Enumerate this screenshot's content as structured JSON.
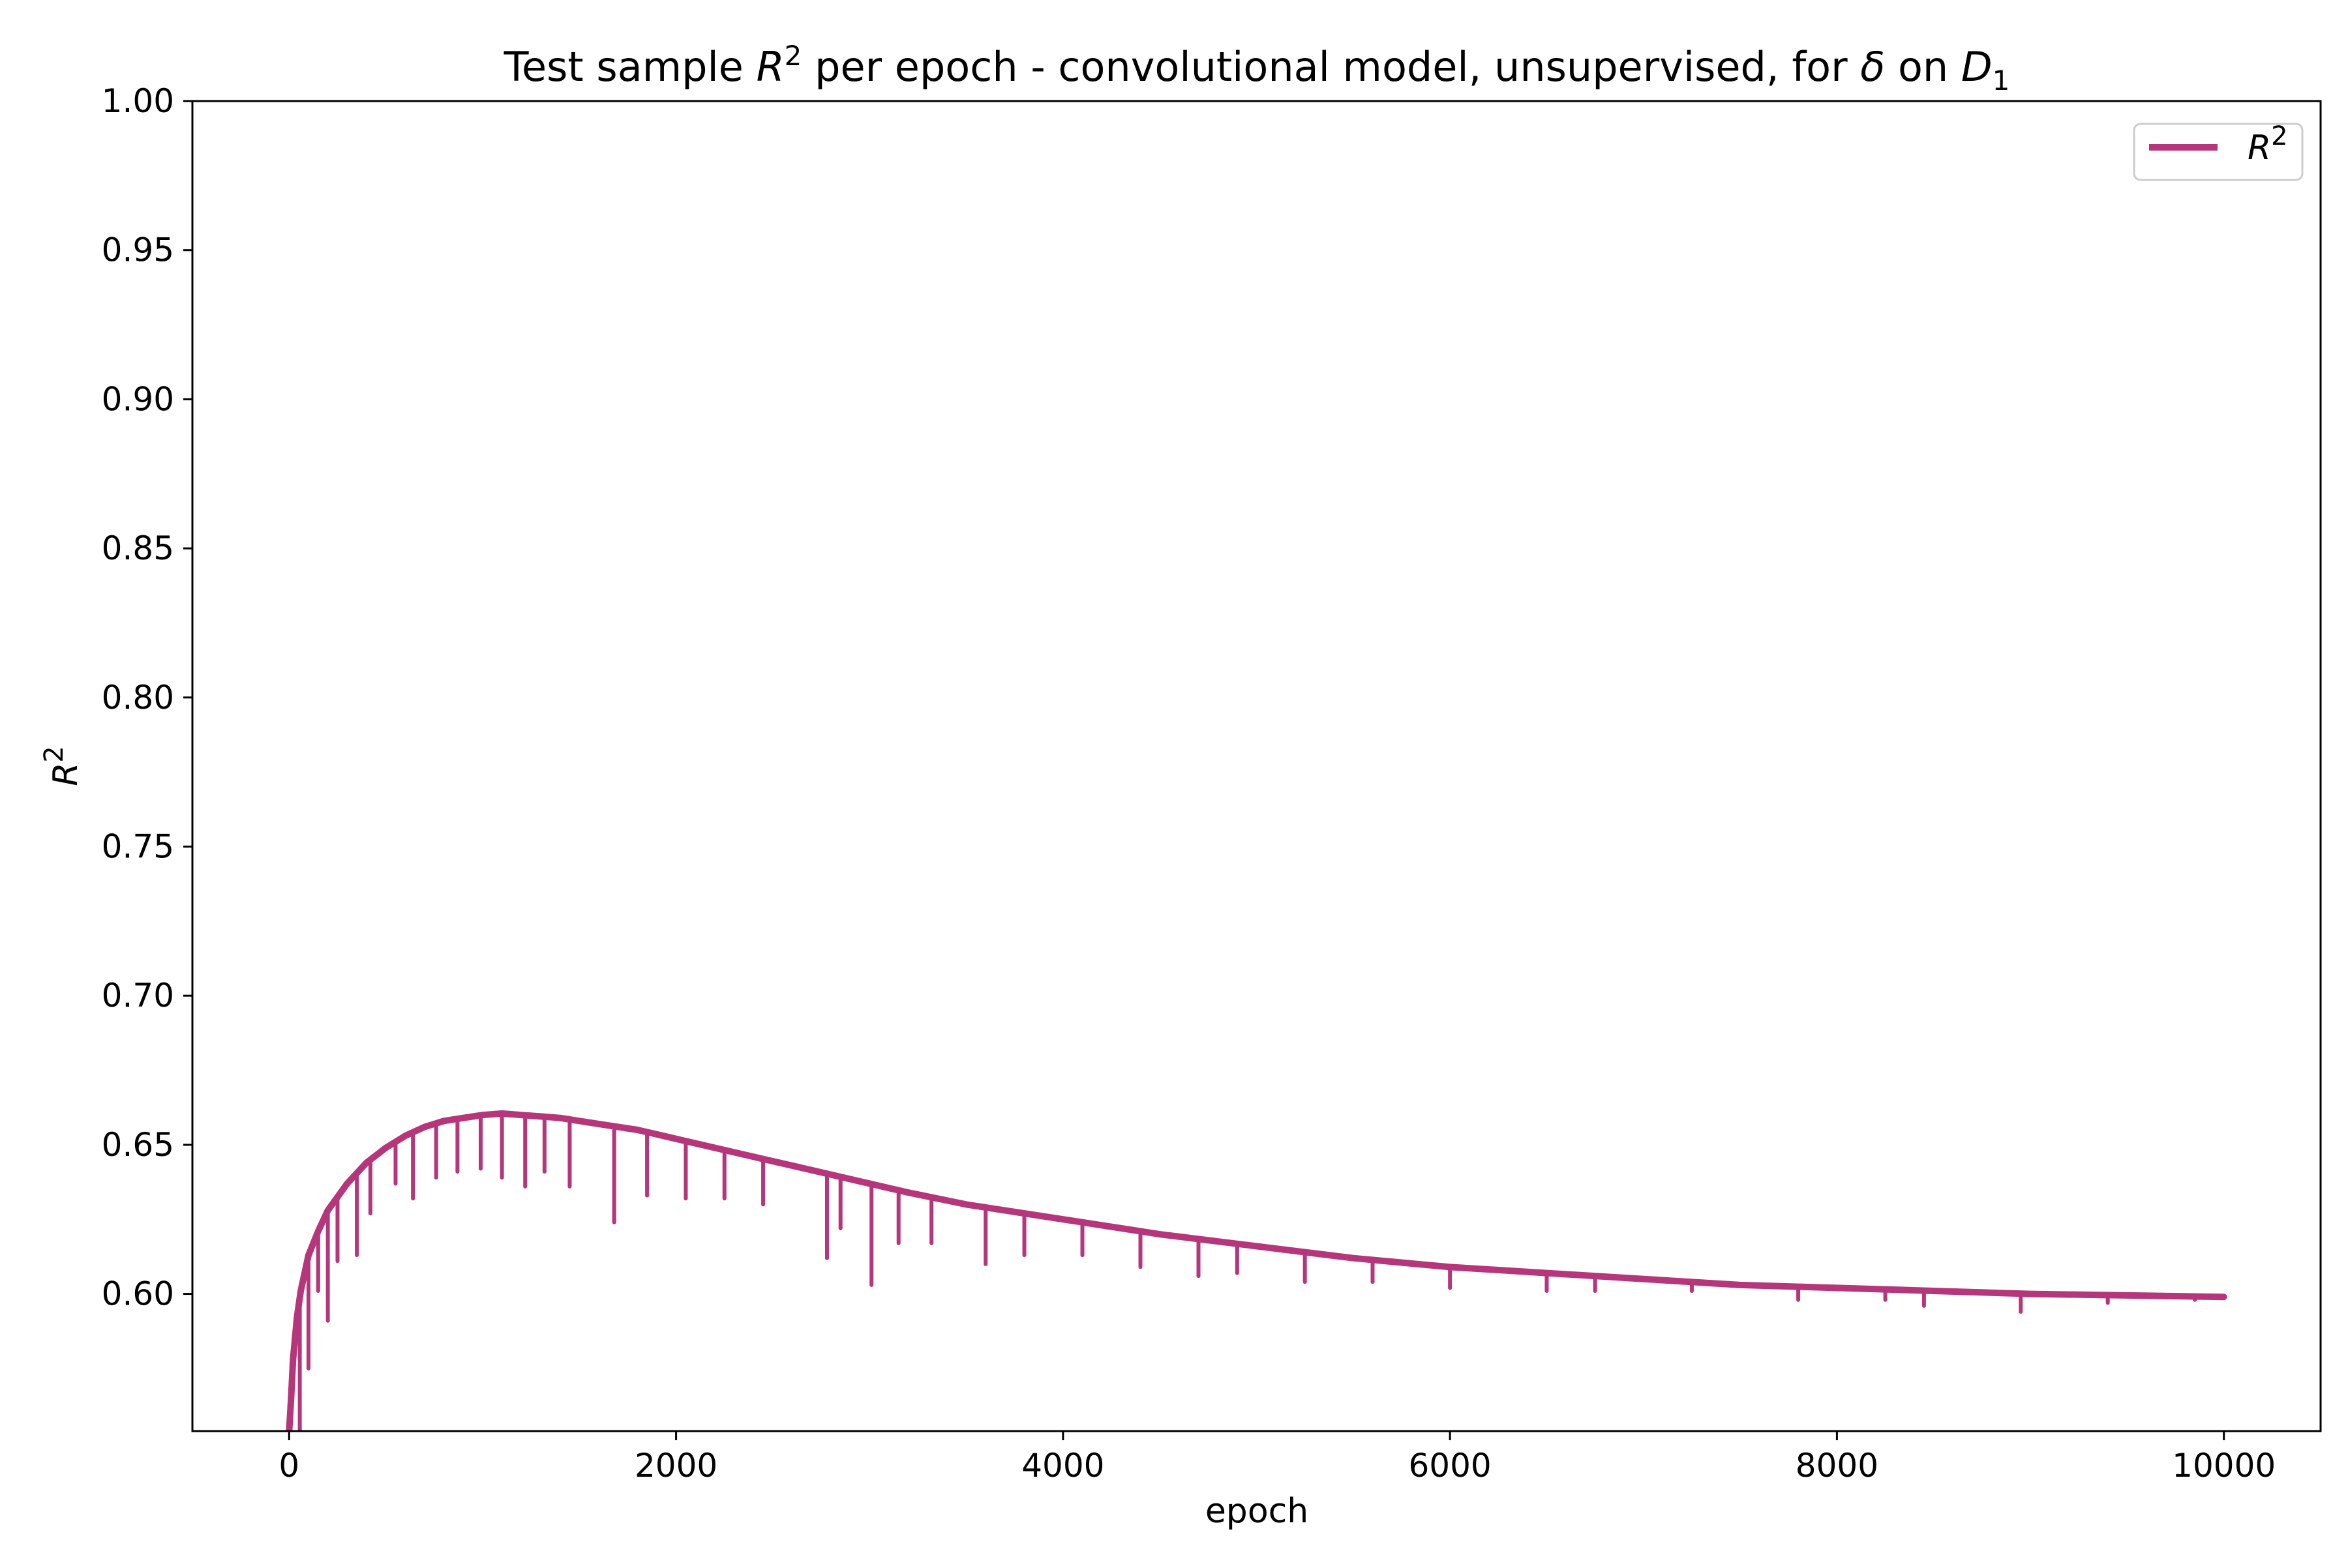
{
  "chart_data": {
    "type": "line",
    "title": {
      "prefix": "Test sample ",
      "r_base": "R",
      "r_sup": "2",
      "middle": " per epoch - convolutional model, unsupervised, for ",
      "delta": "δ",
      "on": " on ",
      "d_base": "D",
      "d_sub": "1"
    },
    "xlabel": "epoch",
    "ylabel": {
      "base": "R",
      "sup": "2"
    },
    "xlim": [
      -500,
      10500
    ],
    "ylim": [
      0.554,
      1.0
    ],
    "xticks": [
      0,
      2000,
      4000,
      6000,
      8000,
      10000
    ],
    "xtick_labels": [
      "0",
      "2000",
      "4000",
      "6000",
      "8000",
      "10000"
    ],
    "yticks": [
      0.6,
      0.65,
      0.7,
      0.75,
      0.8,
      0.85,
      0.9,
      0.95,
      1.0
    ],
    "ytick_labels": [
      "0.60",
      "0.65",
      "0.70",
      "0.75",
      "0.80",
      "0.85",
      "0.90",
      "0.95",
      "1.00"
    ],
    "grid": false,
    "legend_position": "top-right",
    "series": [
      {
        "name": {
          "base": "R",
          "sup": "2"
        },
        "color": "#b5367a",
        "points": [
          [
            0,
            0.554
          ],
          [
            10,
            0.565
          ],
          [
            20,
            0.578
          ],
          [
            40,
            0.592
          ],
          [
            60,
            0.601
          ],
          [
            80,
            0.607
          ],
          [
            100,
            0.613
          ],
          [
            150,
            0.621
          ],
          [
            200,
            0.628
          ],
          [
            300,
            0.637
          ],
          [
            400,
            0.644
          ],
          [
            500,
            0.649
          ],
          [
            600,
            0.653
          ],
          [
            700,
            0.656
          ],
          [
            800,
            0.658
          ],
          [
            900,
            0.659
          ],
          [
            1000,
            0.66
          ],
          [
            1100,
            0.6605
          ],
          [
            1200,
            0.66
          ],
          [
            1300,
            0.6595
          ],
          [
            1400,
            0.659
          ],
          [
            1500,
            0.658
          ],
          [
            1600,
            0.657
          ],
          [
            1800,
            0.655
          ],
          [
            2000,
            0.652
          ],
          [
            2200,
            0.649
          ],
          [
            2400,
            0.646
          ],
          [
            2600,
            0.643
          ],
          [
            2800,
            0.64
          ],
          [
            3000,
            0.637
          ],
          [
            3200,
            0.634
          ],
          [
            3500,
            0.63
          ],
          [
            4000,
            0.625
          ],
          [
            4500,
            0.62
          ],
          [
            5000,
            0.616
          ],
          [
            5500,
            0.612
          ],
          [
            6000,
            0.609
          ],
          [
            6500,
            0.607
          ],
          [
            7000,
            0.605
          ],
          [
            7500,
            0.603
          ],
          [
            8000,
            0.602
          ],
          [
            8500,
            0.601
          ],
          [
            9000,
            0.6
          ],
          [
            9500,
            0.5995
          ],
          [
            10000,
            0.599
          ]
        ],
        "dips": [
          [
            55,
            0.554
          ],
          [
            100,
            0.575
          ],
          [
            150,
            0.601
          ],
          [
            200,
            0.591
          ],
          [
            250,
            0.611
          ],
          [
            350,
            0.613
          ],
          [
            420,
            0.627
          ],
          [
            550,
            0.637
          ],
          [
            640,
            0.632
          ],
          [
            760,
            0.639
          ],
          [
            870,
            0.641
          ],
          [
            990,
            0.642
          ],
          [
            1100,
            0.639
          ],
          [
            1220,
            0.636
          ],
          [
            1320,
            0.641
          ],
          [
            1450,
            0.636
          ],
          [
            1680,
            0.624
          ],
          [
            1850,
            0.633
          ],
          [
            2050,
            0.632
          ],
          [
            2250,
            0.632
          ],
          [
            2450,
            0.63
          ],
          [
            2780,
            0.612
          ],
          [
            2850,
            0.622
          ],
          [
            3010,
            0.603
          ],
          [
            3150,
            0.617
          ],
          [
            3320,
            0.617
          ],
          [
            3600,
            0.61
          ],
          [
            3800,
            0.613
          ],
          [
            4100,
            0.613
          ],
          [
            4400,
            0.609
          ],
          [
            4700,
            0.606
          ],
          [
            4900,
            0.607
          ],
          [
            5250,
            0.604
          ],
          [
            5600,
            0.604
          ],
          [
            6000,
            0.602
          ],
          [
            6500,
            0.601
          ],
          [
            6750,
            0.601
          ],
          [
            7250,
            0.601
          ],
          [
            7800,
            0.598
          ],
          [
            8250,
            0.598
          ],
          [
            8450,
            0.596
          ],
          [
            8950,
            0.594
          ],
          [
            9400,
            0.597
          ],
          [
            9850,
            0.598
          ]
        ]
      }
    ]
  }
}
